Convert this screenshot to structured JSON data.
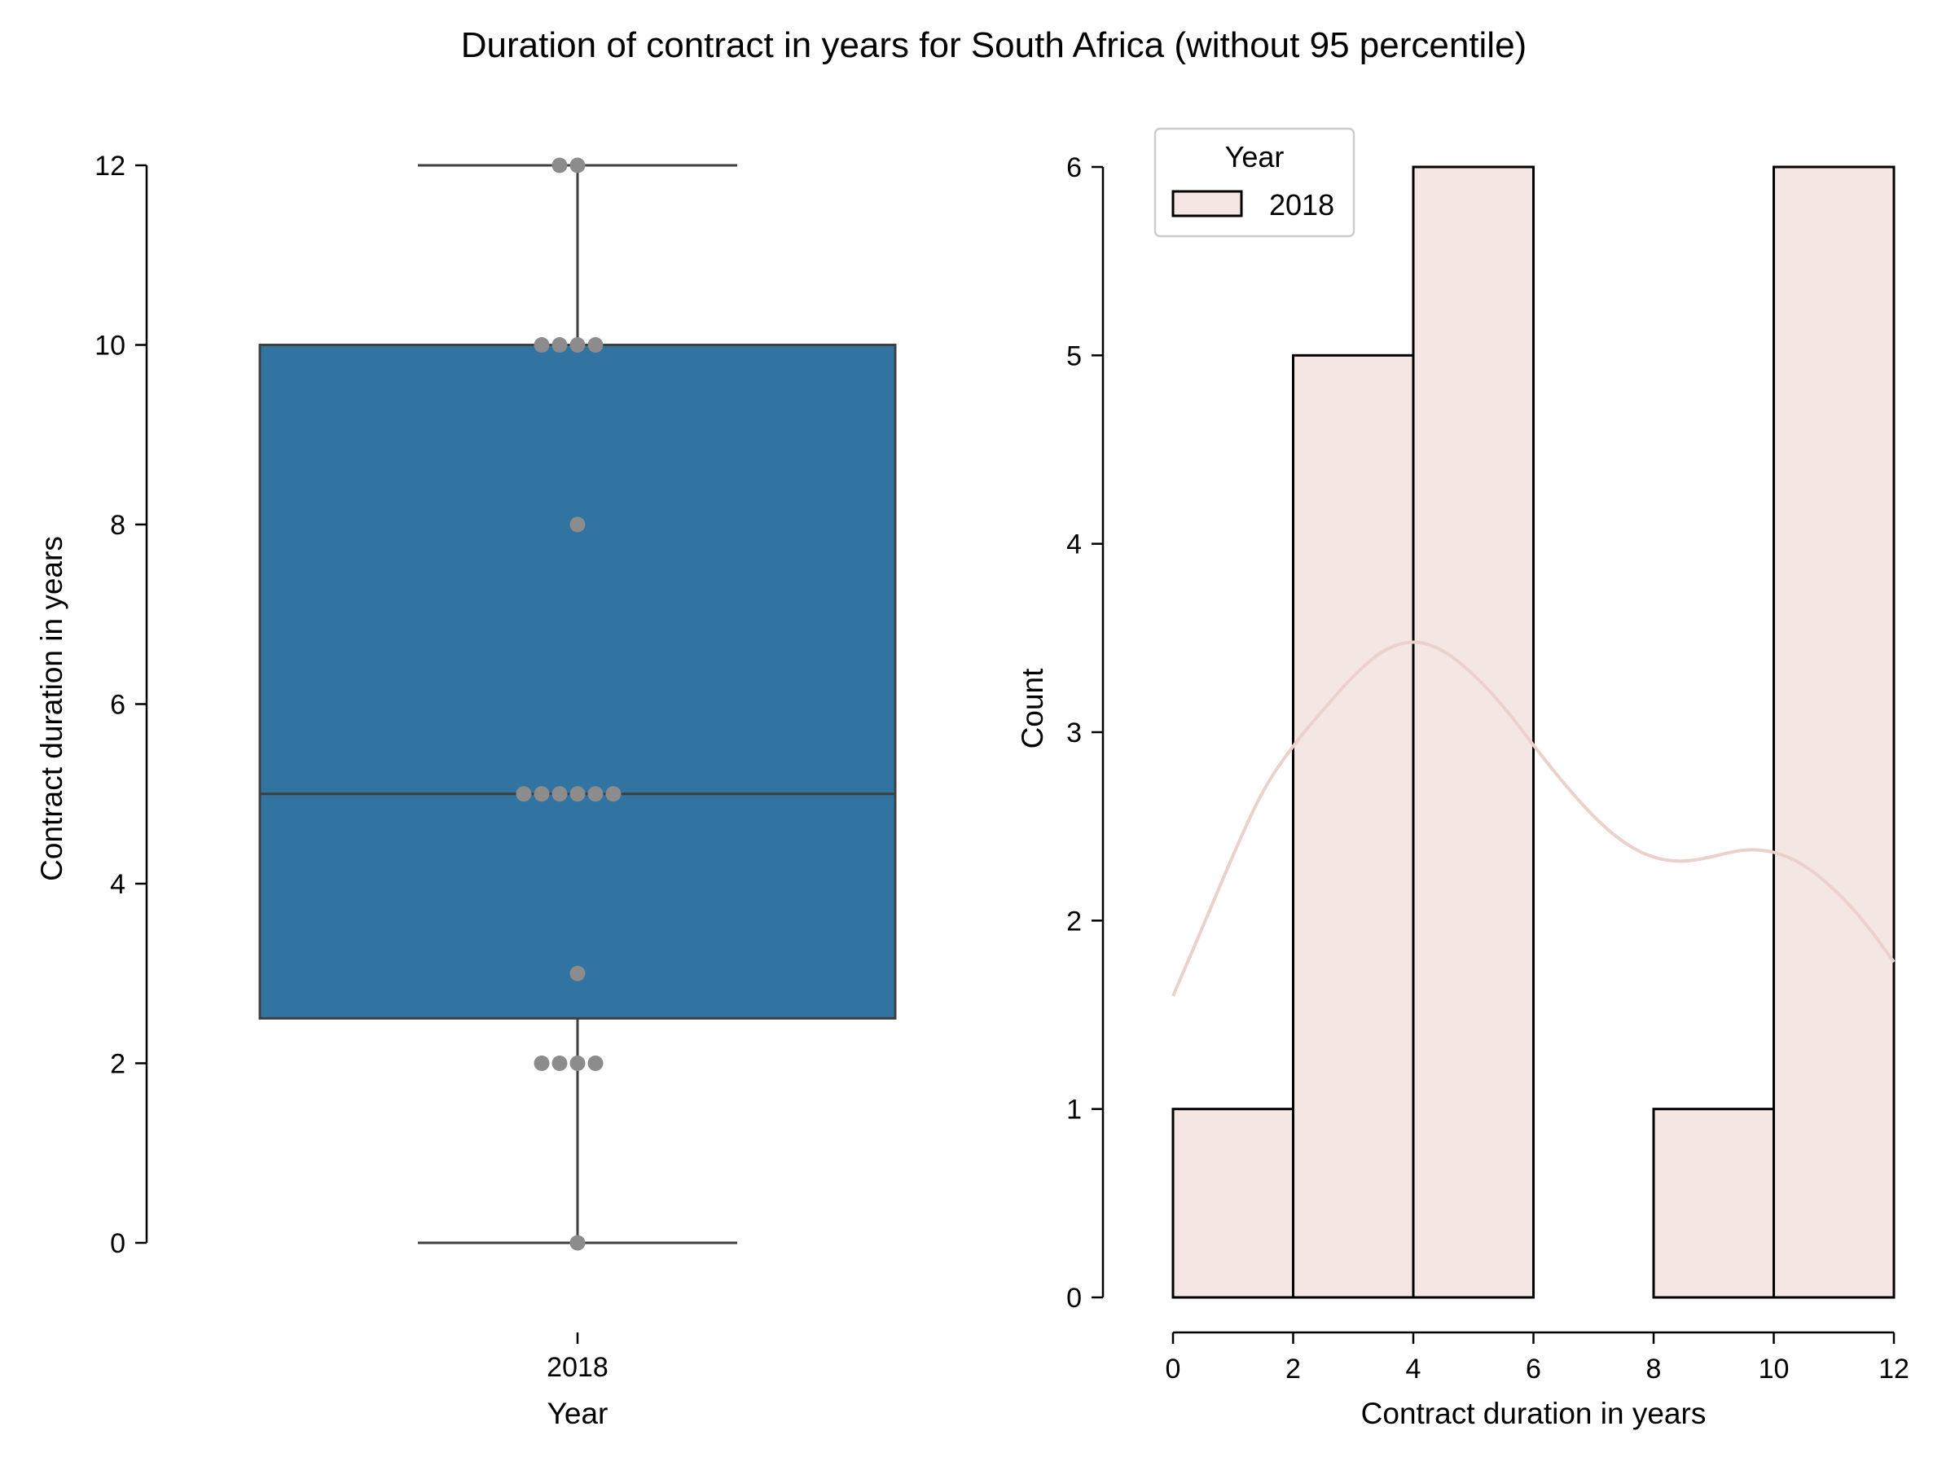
{
  "figure": {
    "title": "Duration of contract in years for South Africa (without 95 percentile)"
  },
  "chart_data": [
    {
      "type": "box",
      "xlabel": "Year",
      "ylabel": "Contract duration in years",
      "categories": [
        "2018"
      ],
      "ylim": [
        0,
        12
      ],
      "yticks": [
        "0",
        "2",
        "4",
        "6",
        "8",
        "10",
        "12"
      ],
      "box": {
        "whisker_low": 0,
        "q1": 2.5,
        "median": 5,
        "q3": 10,
        "whisker_high": 12
      },
      "swarm_points": [
        {
          "value": 12,
          "count": 2
        },
        {
          "value": 10,
          "count": 4
        },
        {
          "value": 8,
          "count": 1
        },
        {
          "value": 5,
          "count": 6
        },
        {
          "value": 3,
          "count": 1
        },
        {
          "value": 2,
          "count": 4
        },
        {
          "value": 0,
          "count": 1
        }
      ],
      "colors": {
        "box_fill": "#3274a1",
        "box_edge": "#3f3f3f",
        "points": "#8c8c8c"
      }
    },
    {
      "type": "histogram",
      "xlabel": "Contract duration in years",
      "ylabel": "Count",
      "xlim": [
        0,
        12
      ],
      "ylim": [
        0,
        6
      ],
      "xticks": [
        "0",
        "2",
        "4",
        "6",
        "8",
        "10",
        "12"
      ],
      "yticks": [
        "0",
        "1",
        "2",
        "3",
        "4",
        "5",
        "6"
      ],
      "bins": [
        {
          "start": 0,
          "end": 2,
          "count": 1
        },
        {
          "start": 2,
          "end": 4,
          "count": 5
        },
        {
          "start": 4,
          "end": 6,
          "count": 6
        },
        {
          "start": 6,
          "end": 8,
          "count": 0
        },
        {
          "start": 8,
          "end": 10,
          "count": 1
        },
        {
          "start": 10,
          "end": 12,
          "count": 6
        }
      ],
      "kde": {
        "x": [
          0,
          0.5,
          1,
          1.5,
          2,
          2.5,
          3,
          3.5,
          4,
          4.5,
          5,
          5.5,
          6,
          6.5,
          7,
          7.5,
          8,
          8.5,
          9,
          9.5,
          10,
          10.5,
          11,
          11.5,
          12
        ],
        "y": [
          1.6,
          1.97,
          2.35,
          2.7,
          2.93,
          3.12,
          3.3,
          3.44,
          3.49,
          3.44,
          3.31,
          3.14,
          2.93,
          2.73,
          2.55,
          2.41,
          2.33,
          2.31,
          2.34,
          2.38,
          2.37,
          2.3,
          2.17,
          2.0,
          1.78
        ]
      },
      "legend": {
        "title": "Year",
        "entries": [
          "2018"
        ],
        "position": "top-left"
      },
      "colors": {
        "bar_fill": "#f4e6e3",
        "bar_edge": "#000000",
        "kde_line": "#ebd1cb"
      }
    }
  ]
}
